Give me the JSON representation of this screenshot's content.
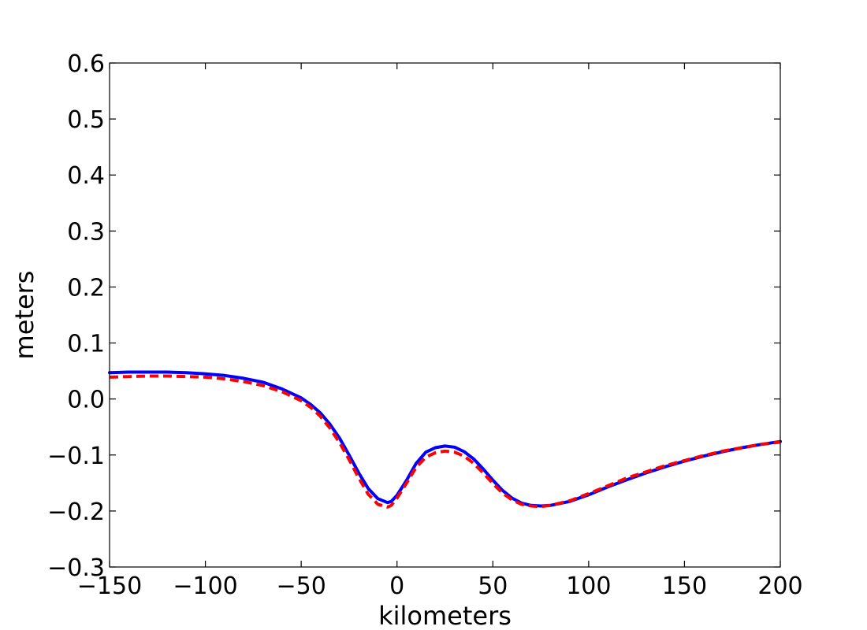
{
  "chart_data": {
    "type": "line",
    "title": "",
    "xlabel": "kilometers",
    "ylabel": "meters",
    "xlim": [
      -150,
      200
    ],
    "ylim": [
      -0.3,
      0.6
    ],
    "xticks": [
      -150,
      -100,
      -50,
      0,
      50,
      100,
      150,
      200
    ],
    "yticks": [
      -0.3,
      -0.2,
      -0.1,
      0.0,
      0.1,
      0.2,
      0.3,
      0.4,
      0.5,
      0.6
    ],
    "xtick_labels": [
      "−150",
      "−100",
      "−50",
      "0",
      "50",
      "100",
      "150",
      "200"
    ],
    "ytick_labels": [
      "−0.3",
      "−0.2",
      "−0.1",
      "0.0",
      "0.1",
      "0.2",
      "0.3",
      "0.4",
      "0.5",
      "0.6"
    ],
    "grid": false,
    "legend": "none",
    "series": [
      {
        "color": "#0000ff",
        "style": "solid",
        "x": [
          -150,
          -140,
          -130,
          -120,
          -110,
          -100,
          -90,
          -80,
          -70,
          -60,
          -50,
          -45,
          -40,
          -35,
          -30,
          -25,
          -20,
          -15,
          -10,
          -5,
          -3,
          0,
          5,
          10,
          15,
          20,
          25,
          30,
          35,
          40,
          45,
          50,
          55,
          60,
          65,
          70,
          75,
          80,
          90,
          100,
          110,
          120,
          130,
          140,
          150,
          160,
          170,
          180,
          190,
          200
        ],
        "y": [
          0.047,
          0.048,
          0.048,
          0.048,
          0.047,
          0.045,
          0.042,
          0.037,
          0.03,
          0.018,
          0.002,
          -0.01,
          -0.025,
          -0.045,
          -0.07,
          -0.1,
          -0.132,
          -0.16,
          -0.178,
          -0.185,
          -0.183,
          -0.172,
          -0.145,
          -0.115,
          -0.095,
          -0.087,
          -0.084,
          -0.086,
          -0.094,
          -0.107,
          -0.125,
          -0.145,
          -0.163,
          -0.177,
          -0.186,
          -0.19,
          -0.191,
          -0.19,
          -0.183,
          -0.171,
          -0.157,
          -0.144,
          -0.132,
          -0.121,
          -0.111,
          -0.102,
          -0.094,
          -0.087,
          -0.081,
          -0.076
        ]
      },
      {
        "color": "#ff0000",
        "style": "dashed",
        "x": [
          -150,
          -140,
          -130,
          -120,
          -110,
          -100,
          -90,
          -80,
          -70,
          -60,
          -50,
          -45,
          -40,
          -35,
          -30,
          -25,
          -20,
          -15,
          -10,
          -5,
          -3,
          0,
          5,
          10,
          15,
          20,
          25,
          30,
          35,
          40,
          45,
          50,
          55,
          60,
          65,
          70,
          75,
          80,
          90,
          100,
          110,
          120,
          130,
          140,
          150,
          160,
          170,
          180,
          190,
          200
        ],
        "y": [
          0.039,
          0.04,
          0.041,
          0.041,
          0.04,
          0.039,
          0.036,
          0.031,
          0.024,
          0.013,
          -0.003,
          -0.015,
          -0.031,
          -0.052,
          -0.078,
          -0.108,
          -0.141,
          -0.17,
          -0.188,
          -0.193,
          -0.19,
          -0.177,
          -0.15,
          -0.122,
          -0.104,
          -0.096,
          -0.093,
          -0.095,
          -0.102,
          -0.115,
          -0.132,
          -0.151,
          -0.168,
          -0.18,
          -0.188,
          -0.191,
          -0.192,
          -0.19,
          -0.182,
          -0.169,
          -0.155,
          -0.141,
          -0.13,
          -0.119,
          -0.11,
          -0.101,
          -0.093,
          -0.087,
          -0.081,
          -0.077
        ]
      }
    ]
  }
}
